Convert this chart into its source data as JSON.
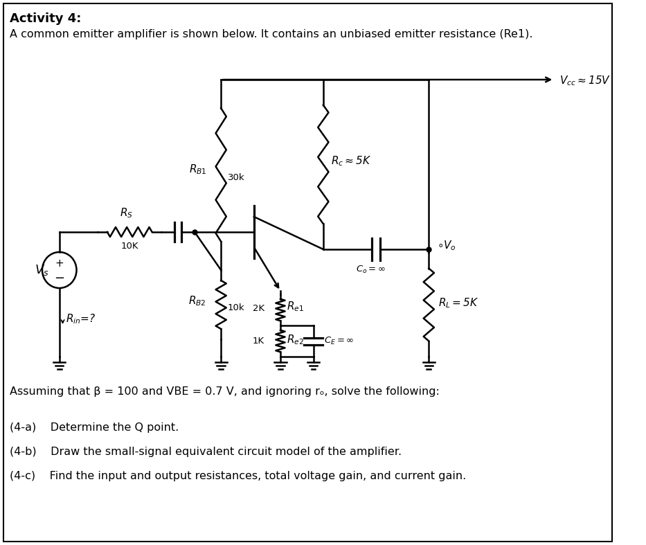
{
  "background_color": "#ffffff",
  "border_color": "#000000",
  "title_bold": "Activity 4:",
  "subtitle": "A common emitter amplifier is shown below. It contains an unbiased emitter resistance (Re1).",
  "assuming_text": "Assuming that β = 100 and VBE = 0.7 V, and ignoring rₒ, solve the following:",
  "q_a": "(4-a)    Determine the Q point.",
  "q_b": "(4-b)    Draw the small-signal equivalent circuit model of the amplifier.",
  "q_c": "(4-c)    Find the input and output resistances, total voltage gain, and current gain.",
  "figsize": [
    9.33,
    7.87
  ],
  "dpi": 100
}
